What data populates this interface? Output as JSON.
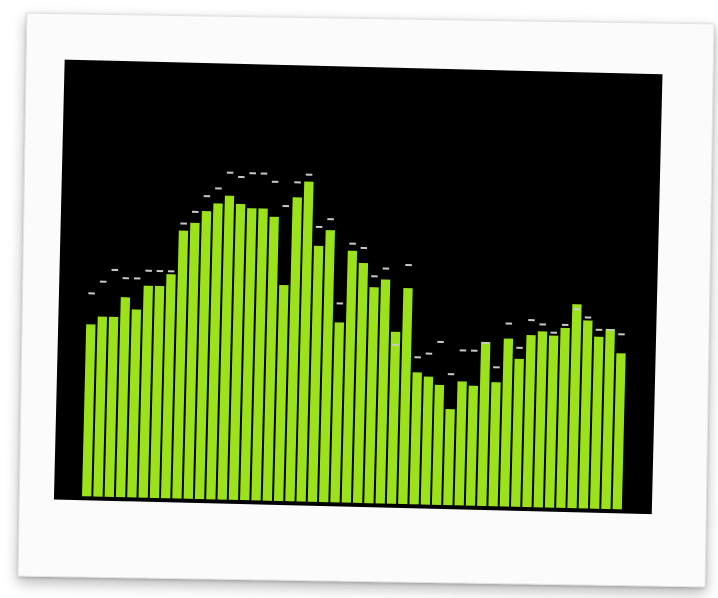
{
  "visualizer": {
    "type": "bar",
    "bar_color": "#9be21a",
    "peak_color": "#c8c8c8",
    "background_color": "#000000",
    "frame_color": "#fbfbfb",
    "bar_levels": [
      0.43,
      0.45,
      0.45,
      0.5,
      0.47,
      0.53,
      0.53,
      0.56,
      0.67,
      0.69,
      0.72,
      0.74,
      0.76,
      0.74,
      0.73,
      0.73,
      0.71,
      0.54,
      0.76,
      0.8,
      0.64,
      0.68,
      0.45,
      0.63,
      0.6,
      0.54,
      0.56,
      0.43,
      0.54,
      0.33,
      0.32,
      0.3,
      0.24,
      0.31,
      0.3,
      0.41,
      0.31,
      0.42,
      0.37,
      0.43,
      0.44,
      0.43,
      0.45,
      0.51,
      0.47,
      0.43,
      0.45,
      0.39
    ],
    "peak_levels": [
      0.51,
      0.54,
      0.57,
      0.55,
      0.55,
      0.57,
      0.57,
      0.57,
      0.69,
      0.72,
      0.76,
      0.78,
      0.82,
      0.81,
      0.82,
      0.82,
      0.8,
      0.74,
      0.8,
      0.82,
      0.69,
      0.71,
      0.5,
      0.65,
      0.64,
      0.57,
      0.59,
      0.4,
      0.6,
      0.37,
      0.38,
      0.41,
      0.33,
      0.39,
      0.39,
      0.41,
      0.35,
      0.46,
      0.4,
      0.47,
      0.46,
      0.44,
      0.46,
      0.5,
      0.48,
      0.45,
      0.45,
      0.44
    ]
  }
}
